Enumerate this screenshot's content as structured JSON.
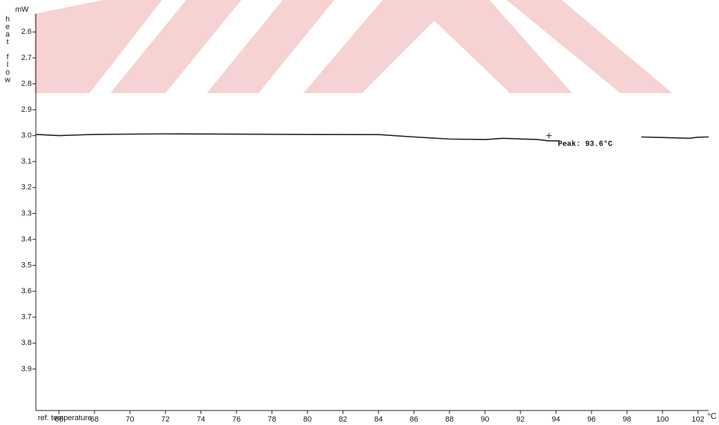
{
  "chart_data": {
    "type": "line",
    "y_axis_label": "heat flow",
    "y_unit": "mW",
    "x_axis_label": "ref. temperature",
    "x_unit": "°C",
    "color": "#111111",
    "x": [
      64.7,
      66,
      68,
      72,
      76,
      80,
      84,
      86,
      88,
      90,
      91,
      93,
      93.6,
      94.2,
      null,
      98.8,
      100,
      101.5,
      102,
      102.6
    ],
    "values": [
      2.995,
      3.0,
      2.995,
      2.993,
      2.994,
      2.995,
      2.996,
      3.005,
      3.013,
      3.015,
      3.01,
      3.015,
      3.02,
      3.02,
      null,
      3.005,
      3.007,
      3.01,
      3.006,
      3.005
    ],
    "peak": {
      "label": "Peak: 93.6°C",
      "x": 93.6,
      "y": 3.0
    },
    "xlim": [
      64.7,
      102.6
    ],
    "ylim": [
      2.53,
      4.06
    ],
    "y_inverted": true,
    "xticks": [
      66,
      68,
      70,
      72,
      74,
      76,
      78,
      80,
      82,
      84,
      86,
      88,
      90,
      92,
      94,
      96,
      98,
      100,
      102
    ],
    "yticks": [
      2.6,
      2.7,
      2.8,
      2.9,
      {
        "value": 3.0,
        "label": "3.0"
      },
      3.1,
      3.2,
      3.3,
      3.4,
      3.5,
      3.6,
      3.7,
      3.8,
      3.9
    ]
  }
}
